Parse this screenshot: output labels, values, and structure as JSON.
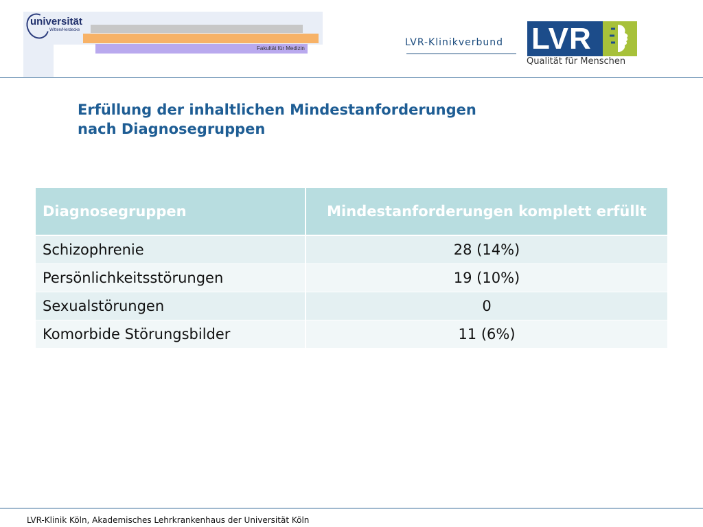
{
  "header": {
    "uw_logo": {
      "wordmark": "universität",
      "subline": "Witten/Herdecke",
      "faculty": "Fakultät für Medizin"
    },
    "lvr_logo": {
      "verbund": "LVR-Klinikverbund",
      "mark": "LVR",
      "tagline": "Qualität für Menschen",
      "colors": {
        "blue": "#1c4c8a",
        "green": "#a7c13a"
      }
    }
  },
  "slide": {
    "title_line1": "Erfüllung der inhaltlichen Mindestanforderungen",
    "title_line2": "nach Diagnosegruppen"
  },
  "table": {
    "headers": {
      "group": "Diagnosegruppen",
      "requirements": "Mindestanforderungen komplett erfüllt"
    },
    "rows": [
      {
        "group": "Schizophrenie",
        "value": "28 (14%)"
      },
      {
        "group": "Persönlichkeitsstörungen",
        "value": "19 (10%)"
      },
      {
        "group": "Sexualstörungen",
        "value": "0"
      },
      {
        "group": "Komorbide Störungsbilder",
        "value": "11 (6%)"
      }
    ],
    "colors": {
      "header": "#b8dde0",
      "row_odd": "#e4f0f2",
      "row_even": "#f1f7f8"
    }
  },
  "footer": {
    "text": "LVR-Klinik Köln, Akademisches Lehrkrankenhaus der Universität Köln"
  }
}
